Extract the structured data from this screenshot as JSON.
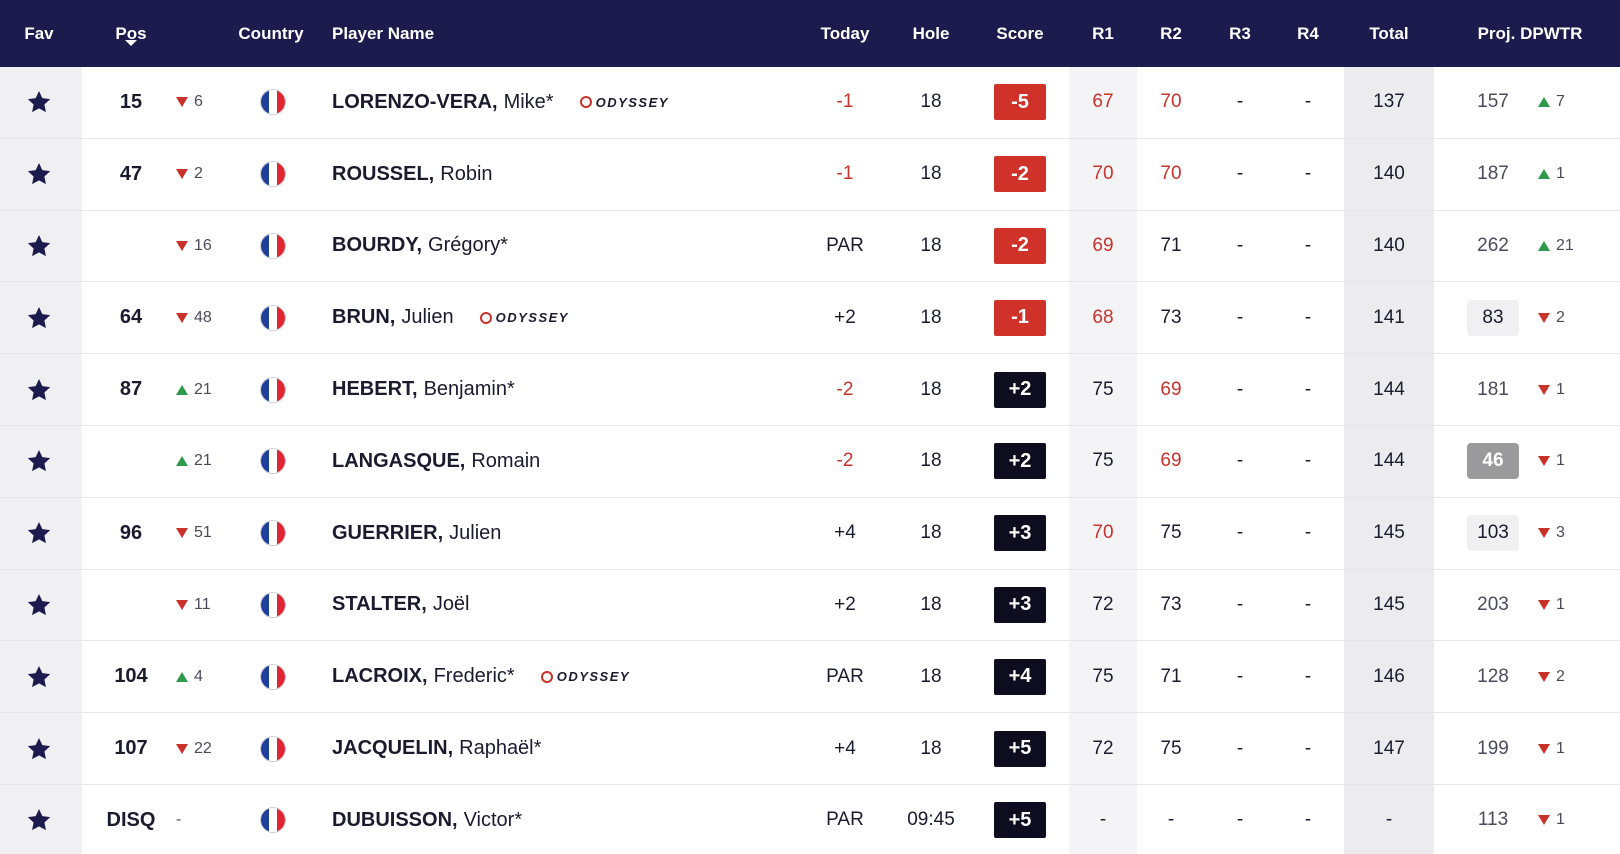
{
  "colors": {
    "header_bg": "#1c1b4d",
    "negative": "#c8322a",
    "badge_negative": "#d0322a",
    "badge_positive": "#0e0d20",
    "up": "#2e9a4b"
  },
  "columns": {
    "fav": "Fav",
    "pos": "Pos",
    "country": "Country",
    "player": "Player Name",
    "today": "Today",
    "hole": "Hole",
    "score": "Score",
    "r1": "R1",
    "r2": "R2",
    "r3": "R3",
    "r4": "R4",
    "total": "Total",
    "proj": "Proj. DPWTR"
  },
  "rows": [
    {
      "pos": "15",
      "move": "6",
      "move_dir": "down",
      "last": "LORENZO-VERA,",
      "first": "Mike*",
      "sponsor": "ODYSSEY",
      "today": "-1",
      "today_red": true,
      "hole": "18",
      "score": "-5",
      "score_neg": true,
      "r1": "67",
      "r1_red": true,
      "r2": "70",
      "r2_red": true,
      "r3": "-",
      "r4": "-",
      "total": "137",
      "proj": "157",
      "proj_hl": "",
      "proj_move": "7",
      "proj_dir": "up"
    },
    {
      "pos": "47",
      "move": "2",
      "move_dir": "down",
      "last": "ROUSSEL,",
      "first": "Robin",
      "sponsor": "",
      "today": "-1",
      "today_red": true,
      "hole": "18",
      "score": "-2",
      "score_neg": true,
      "r1": "70",
      "r1_red": true,
      "r2": "70",
      "r2_red": true,
      "r3": "-",
      "r4": "-",
      "total": "140",
      "proj": "187",
      "proj_hl": "",
      "proj_move": "1",
      "proj_dir": "up"
    },
    {
      "pos": "",
      "move": "16",
      "move_dir": "down",
      "last": "BOURDY,",
      "first": "Grégory*",
      "sponsor": "",
      "today": "PAR",
      "today_red": false,
      "hole": "18",
      "score": "-2",
      "score_neg": true,
      "r1": "69",
      "r1_red": true,
      "r2": "71",
      "r2_red": false,
      "r3": "-",
      "r4": "-",
      "total": "140",
      "proj": "262",
      "proj_hl": "",
      "proj_move": "21",
      "proj_dir": "up"
    },
    {
      "pos": "64",
      "move": "48",
      "move_dir": "down",
      "last": "BRUN,",
      "first": "Julien",
      "sponsor": "ODYSSEY",
      "today": "+2",
      "today_red": false,
      "hole": "18",
      "score": "-1",
      "score_neg": true,
      "r1": "68",
      "r1_red": true,
      "r2": "73",
      "r2_red": false,
      "r3": "-",
      "r4": "-",
      "total": "141",
      "proj": "83",
      "proj_hl": "light",
      "proj_move": "2",
      "proj_dir": "down"
    },
    {
      "pos": "87",
      "move": "21",
      "move_dir": "up",
      "last": "HEBERT,",
      "first": "Benjamin*",
      "sponsor": "",
      "today": "-2",
      "today_red": true,
      "hole": "18",
      "score": "+2",
      "score_neg": false,
      "r1": "75",
      "r1_red": false,
      "r2": "69",
      "r2_red": true,
      "r3": "-",
      "r4": "-",
      "total": "144",
      "proj": "181",
      "proj_hl": "",
      "proj_move": "1",
      "proj_dir": "down"
    },
    {
      "pos": "",
      "move": "21",
      "move_dir": "up",
      "last": "LANGASQUE,",
      "first": "Romain",
      "sponsor": "",
      "today": "-2",
      "today_red": true,
      "hole": "18",
      "score": "+2",
      "score_neg": false,
      "r1": "75",
      "r1_red": false,
      "r2": "69",
      "r2_red": true,
      "r3": "-",
      "r4": "-",
      "total": "144",
      "proj": "46",
      "proj_hl": "grey",
      "proj_move": "1",
      "proj_dir": "down"
    },
    {
      "pos": "96",
      "move": "51",
      "move_dir": "down",
      "last": "GUERRIER,",
      "first": "Julien",
      "sponsor": "",
      "today": "+4",
      "today_red": false,
      "hole": "18",
      "score": "+3",
      "score_neg": false,
      "r1": "70",
      "r1_red": true,
      "r2": "75",
      "r2_red": false,
      "r3": "-",
      "r4": "-",
      "total": "145",
      "proj": "103",
      "proj_hl": "light",
      "proj_move": "3",
      "proj_dir": "down"
    },
    {
      "pos": "",
      "move": "11",
      "move_dir": "down",
      "last": "STALTER,",
      "first": "Joël",
      "sponsor": "",
      "today": "+2",
      "today_red": false,
      "hole": "18",
      "score": "+3",
      "score_neg": false,
      "r1": "72",
      "r1_red": false,
      "r2": "73",
      "r2_red": false,
      "r3": "-",
      "r4": "-",
      "total": "145",
      "proj": "203",
      "proj_hl": "",
      "proj_move": "1",
      "proj_dir": "down"
    },
    {
      "pos": "104",
      "move": "4",
      "move_dir": "up",
      "last": "LACROIX,",
      "first": "Frederic*",
      "sponsor": "ODYSSEY",
      "today": "PAR",
      "today_red": false,
      "hole": "18",
      "score": "+4",
      "score_neg": false,
      "r1": "75",
      "r1_red": false,
      "r2": "71",
      "r2_red": false,
      "r3": "-",
      "r4": "-",
      "total": "146",
      "proj": "128",
      "proj_hl": "",
      "proj_move": "2",
      "proj_dir": "down"
    },
    {
      "pos": "107",
      "move": "22",
      "move_dir": "down",
      "last": "JACQUELIN,",
      "first": "Raphaël*",
      "sponsor": "",
      "today": "+4",
      "today_red": false,
      "hole": "18",
      "score": "+5",
      "score_neg": false,
      "r1": "72",
      "r1_red": false,
      "r2": "75",
      "r2_red": false,
      "r3": "-",
      "r4": "-",
      "total": "147",
      "proj": "199",
      "proj_hl": "",
      "proj_move": "1",
      "proj_dir": "down"
    },
    {
      "pos": "DISQ",
      "move": "-",
      "move_dir": "none",
      "last": "DUBUISSON,",
      "first": "Victor*",
      "sponsor": "",
      "today": "PAR",
      "today_red": false,
      "hole": "09:45",
      "score": "+5",
      "score_neg": false,
      "r1": "-",
      "r1_red": false,
      "r2": "-",
      "r2_red": false,
      "r3": "-",
      "r4": "-",
      "total": "-",
      "proj": "113",
      "proj_hl": "",
      "proj_move": "1",
      "proj_dir": "down"
    }
  ]
}
